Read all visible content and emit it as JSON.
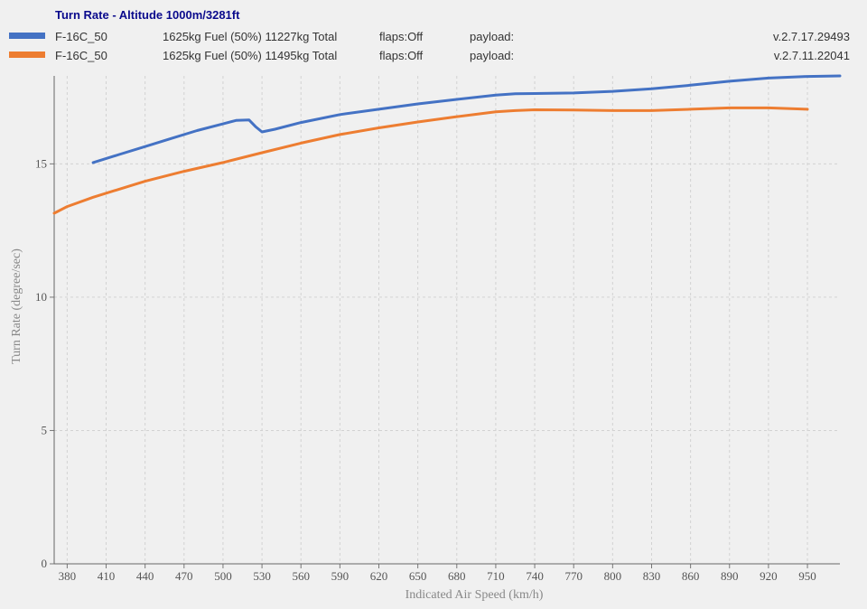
{
  "chart_data": {
    "type": "line",
    "title": "Turn Rate - Altitude 1000m/3281ft",
    "xlabel": "Indicated Air Speed (km/h)",
    "ylabel": "Turn Rate (degree/sec)",
    "xlim": [
      370,
      975
    ],
    "ylim": [
      0,
      18.3
    ],
    "x_ticks": [
      380,
      410,
      440,
      470,
      500,
      530,
      560,
      590,
      620,
      650,
      680,
      710,
      740,
      770,
      800,
      830,
      860,
      890,
      920,
      950
    ],
    "y_ticks": [
      0,
      5,
      10,
      15
    ],
    "grid": true,
    "legend_placement": "top",
    "series": [
      {
        "name": "F-16C_50",
        "fuel": "1625kg Fuel (50%) 11227kg Total",
        "flaps": "flaps:Off",
        "payload": "payload:",
        "version": "v.2.7.17.29493",
        "color": "#4472c4",
        "x": [
          400,
          420,
          440,
          460,
          480,
          500,
          510,
          520,
          525,
          530,
          540,
          560,
          590,
          620,
          650,
          680,
          710,
          725,
          740,
          770,
          800,
          830,
          860,
          890,
          920,
          950,
          975
        ],
        "y": [
          15.05,
          15.35,
          15.65,
          15.95,
          16.25,
          16.5,
          16.63,
          16.65,
          16.4,
          16.2,
          16.3,
          16.55,
          16.85,
          17.05,
          17.25,
          17.42,
          17.58,
          17.63,
          17.64,
          17.66,
          17.72,
          17.82,
          17.95,
          18.1,
          18.22,
          18.28,
          18.3
        ]
      },
      {
        "name": "F-16C_50",
        "fuel": "1625kg Fuel (50%) 11495kg Total",
        "flaps": "flaps:Off",
        "payload": "payload:",
        "version": "v.2.7.11.22041",
        "color": "#ed7d31",
        "x": [
          370,
          380,
          400,
          420,
          440,
          470,
          500,
          530,
          560,
          590,
          620,
          650,
          680,
          710,
          725,
          740,
          770,
          800,
          830,
          860,
          890,
          920,
          950
        ],
        "y": [
          13.15,
          13.4,
          13.75,
          14.05,
          14.35,
          14.72,
          15.05,
          15.42,
          15.78,
          16.1,
          16.35,
          16.57,
          16.77,
          16.95,
          17.0,
          17.03,
          17.02,
          17.0,
          17.0,
          17.05,
          17.1,
          17.1,
          17.05
        ]
      }
    ]
  }
}
